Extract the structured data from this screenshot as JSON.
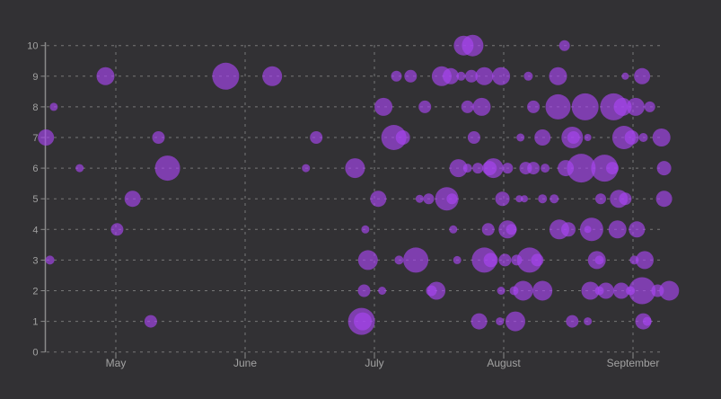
{
  "chart_data": {
    "type": "scatter",
    "subtype": "bubble",
    "title": "",
    "xlabel": "",
    "ylabel": "",
    "legend": "none",
    "grid": "dashed",
    "x_ticks": [
      {
        "label": "May",
        "value": 5
      },
      {
        "label": "June",
        "value": 6
      },
      {
        "label": "July",
        "value": 7
      },
      {
        "label": "August",
        "value": 8
      },
      {
        "label": "September",
        "value": 9
      }
    ],
    "y_ticks": [
      "0",
      "1",
      "2",
      "3",
      "4",
      "5",
      "6",
      "7",
      "8",
      "9",
      "10"
    ],
    "xlim": [
      4.45,
      9.62
    ],
    "ylim": [
      0,
      10.4
    ],
    "series_name": "bubbles",
    "points_format": [
      "x_month",
      "y_value",
      "radius_px"
    ],
    "points": [
      [
        7.69,
        10,
        11
      ],
      [
        7.76,
        10,
        12
      ],
      [
        8.47,
        10,
        6
      ],
      [
        4.92,
        9,
        10
      ],
      [
        5.85,
        9,
        15
      ],
      [
        6.21,
        9,
        11
      ],
      [
        7.17,
        9,
        6
      ],
      [
        7.28,
        9,
        7
      ],
      [
        7.52,
        9,
        11
      ],
      [
        7.59,
        9,
        9
      ],
      [
        7.67,
        9,
        5
      ],
      [
        7.75,
        9,
        7
      ],
      [
        7.85,
        9,
        10
      ],
      [
        7.98,
        9,
        10
      ],
      [
        8.19,
        9,
        5
      ],
      [
        8.42,
        9,
        10
      ],
      [
        8.94,
        9,
        4
      ],
      [
        9.07,
        9,
        9
      ],
      [
        4.52,
        8,
        4.5
      ],
      [
        7.07,
        8,
        10
      ],
      [
        7.39,
        8,
        7
      ],
      [
        7.72,
        8,
        7
      ],
      [
        7.83,
        8,
        10
      ],
      [
        8.23,
        8,
        7
      ],
      [
        8.42,
        8,
        14
      ],
      [
        8.63,
        8,
        15
      ],
      [
        8.85,
        8,
        15
      ],
      [
        8.92,
        8,
        10
      ],
      [
        9.02,
        8,
        10
      ],
      [
        9.13,
        8,
        6
      ],
      [
        4.46,
        7,
        9
      ],
      [
        5.33,
        7,
        7
      ],
      [
        6.55,
        7,
        7
      ],
      [
        7.15,
        7,
        14
      ],
      [
        7.22,
        7,
        8
      ],
      [
        7.77,
        7,
        7
      ],
      [
        8.13,
        7,
        4.5
      ],
      [
        8.3,
        7,
        9
      ],
      [
        8.53,
        7,
        12
      ],
      [
        8.54,
        7,
        7
      ],
      [
        8.65,
        7,
        4
      ],
      [
        8.93,
        7,
        13
      ],
      [
        8.99,
        7,
        8
      ],
      [
        9.08,
        7,
        5
      ],
      [
        9.22,
        7,
        10
      ],
      [
        4.72,
        6,
        4.5
      ],
      [
        5.4,
        6,
        14
      ],
      [
        6.47,
        6,
        4.5
      ],
      [
        6.85,
        6,
        11
      ],
      [
        7.65,
        6,
        10
      ],
      [
        7.72,
        6,
        5
      ],
      [
        7.8,
        6,
        6
      ],
      [
        7.89,
        6,
        8
      ],
      [
        7.92,
        6,
        11
      ],
      [
        8.03,
        6,
        6
      ],
      [
        8.17,
        6,
        7
      ],
      [
        8.23,
        6,
        7
      ],
      [
        8.32,
        6,
        5
      ],
      [
        8.48,
        6,
        9
      ],
      [
        8.6,
        6,
        16
      ],
      [
        8.78,
        6,
        15
      ],
      [
        8.84,
        6,
        7
      ],
      [
        9.24,
        6,
        8
      ],
      [
        5.13,
        5,
        9
      ],
      [
        7.03,
        5,
        9
      ],
      [
        7.35,
        5,
        4.5
      ],
      [
        7.42,
        5,
        6
      ],
      [
        7.56,
        5,
        13
      ],
      [
        7.6,
        5,
        6
      ],
      [
        7.99,
        5,
        8
      ],
      [
        8.12,
        5,
        4
      ],
      [
        8.16,
        5,
        4
      ],
      [
        8.3,
        5,
        5
      ],
      [
        8.39,
        5,
        5
      ],
      [
        8.75,
        5,
        6
      ],
      [
        8.89,
        5,
        10
      ],
      [
        8.94,
        5,
        7
      ],
      [
        9.24,
        5,
        9
      ],
      [
        5.01,
        4,
        7
      ],
      [
        6.93,
        4,
        4.5
      ],
      [
        7.61,
        4,
        4.5
      ],
      [
        7.88,
        4,
        7
      ],
      [
        8.03,
        4,
        10
      ],
      [
        8.06,
        4,
        6
      ],
      [
        8.43,
        4,
        11
      ],
      [
        8.5,
        4,
        8
      ],
      [
        8.65,
        4,
        4
      ],
      [
        8.68,
        4,
        13
      ],
      [
        8.88,
        4,
        10
      ],
      [
        9.03,
        4,
        9
      ],
      [
        4.49,
        3,
        5
      ],
      [
        6.95,
        3,
        11
      ],
      [
        7.19,
        3,
        5
      ],
      [
        7.32,
        3,
        14
      ],
      [
        7.64,
        3,
        4.5
      ],
      [
        7.85,
        3,
        14
      ],
      [
        7.9,
        3,
        8
      ],
      [
        8.01,
        3,
        7
      ],
      [
        8.1,
        3,
        6
      ],
      [
        8.2,
        3,
        14
      ],
      [
        8.26,
        3,
        7
      ],
      [
        8.72,
        3,
        10
      ],
      [
        8.74,
        3,
        5
      ],
      [
        9.01,
        3,
        5
      ],
      [
        9.09,
        3,
        10
      ],
      [
        6.92,
        2,
        7
      ],
      [
        7.06,
        2,
        4.5
      ],
      [
        7.44,
        2,
        6
      ],
      [
        7.48,
        2,
        10
      ],
      [
        7.98,
        2,
        4.5
      ],
      [
        8.08,
        2,
        5
      ],
      [
        8.15,
        2,
        11
      ],
      [
        8.3,
        2,
        11
      ],
      [
        8.67,
        2,
        10
      ],
      [
        8.74,
        2,
        5
      ],
      [
        8.79,
        2,
        9
      ],
      [
        8.91,
        2,
        9
      ],
      [
        8.98,
        2,
        5
      ],
      [
        9.07,
        2,
        15
      ],
      [
        9.19,
        2,
        7
      ],
      [
        9.28,
        2,
        11
      ],
      [
        5.27,
        1,
        7
      ],
      [
        6.9,
        1,
        15
      ],
      [
        6.91,
        1,
        10
      ],
      [
        7.81,
        1,
        9
      ],
      [
        7.97,
        1,
        4.5
      ],
      [
        8.09,
        1,
        11
      ],
      [
        8.53,
        1,
        7
      ],
      [
        8.65,
        1,
        4.5
      ],
      [
        9.08,
        1,
        9
      ],
      [
        9.11,
        1,
        5
      ]
    ]
  },
  "colors": {
    "background": "#323134",
    "grid": "#8f8f8f",
    "axis": "#8a8a8a",
    "tick_label": "#a2a2a2",
    "bubble": "#a845f0",
    "bubble_opacity": 0.65
  }
}
